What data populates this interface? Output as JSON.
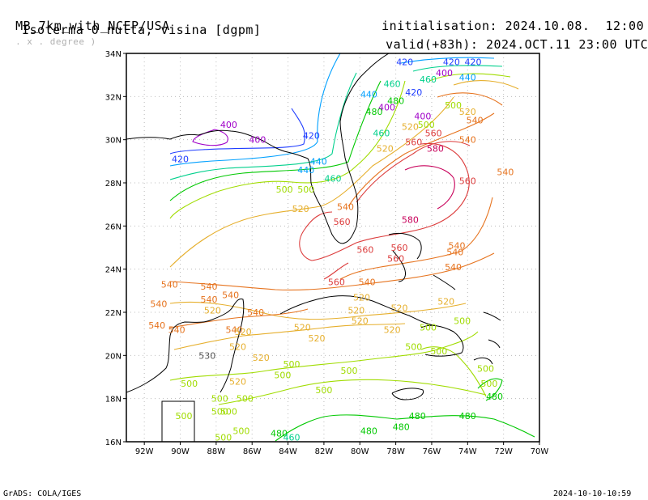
{
  "header": {
    "model": "MB_7km_with_NCEP/USA",
    "model_sub": ". x . degree )",
    "product": "Isoterma 0 nulta, visina [dgpm]",
    "init_label": "initialisation:",
    "init_value": "2024.10.08.  12:00 UTC",
    "valid_label": "valid(+83h):",
    "valid_value": "2024.OCT.11 23:00 UTC"
  },
  "footer": {
    "left": "GrADS: COLA/IGES",
    "right": "2024-10-10-10:59"
  },
  "map": {
    "lon_range": [
      -93,
      -70
    ],
    "lat_range": [
      16,
      34
    ],
    "x_ticks": [
      "92W",
      "90W",
      "88W",
      "86W",
      "84W",
      "82W",
      "80W",
      "78W",
      "76W",
      "74W",
      "72W",
      "70W"
    ],
    "y_ticks": [
      "34N",
      "32N",
      "30N",
      "28N",
      "26N",
      "24N",
      "22N",
      "20N",
      "18N",
      "16N"
    ],
    "contour_colors": {
      "400": "#a000c8",
      "420": "#1e3cff",
      "440": "#00a0ff",
      "460": "#00d08c",
      "480": "#00c800",
      "500": "#a0dc00",
      "520": "#e6af2d",
      "540": "#e6731e",
      "560": "#dc3c3c",
      "580": "#c8005a"
    },
    "contour_labels": [
      {
        "v": "420",
        "lon": -77.5,
        "lat": 33.6
      },
      {
        "v": "420",
        "lon": -74.9,
        "lat": 33.6
      },
      {
        "v": "420",
        "lon": -73.7,
        "lat": 33.6
      },
      {
        "v": "400",
        "lon": -75.3,
        "lat": 33.1
      },
      {
        "v": "440",
        "lon": -74.0,
        "lat": 32.9
      },
      {
        "v": "460",
        "lon": -76.2,
        "lat": 32.8
      },
      {
        "v": "440",
        "lon": -79.5,
        "lat": 32.1
      },
      {
        "v": "460",
        "lon": -78.2,
        "lat": 32.6
      },
      {
        "v": "400",
        "lon": -78.5,
        "lat": 31.5
      },
      {
        "v": "480",
        "lon": -78.0,
        "lat": 31.8
      },
      {
        "v": "420",
        "lon": -77.0,
        "lat": 32.2
      },
      {
        "v": "500",
        "lon": -74.8,
        "lat": 31.6
      },
      {
        "v": "480",
        "lon": -79.2,
        "lat": 31.3
      },
      {
        "v": "520",
        "lon": -74.0,
        "lat": 31.3
      },
      {
        "v": "400",
        "lon": -76.5,
        "lat": 31.1
      },
      {
        "v": "540",
        "lon": -73.6,
        "lat": 30.9
      },
      {
        "v": "500",
        "lon": -76.3,
        "lat": 30.7
      },
      {
        "v": "460",
        "lon": -78.8,
        "lat": 30.3
      },
      {
        "v": "520",
        "lon": -77.2,
        "lat": 30.6
      },
      {
        "v": "560",
        "lon": -75.9,
        "lat": 30.3
      },
      {
        "v": "540",
        "lon": -74.0,
        "lat": 30.0
      },
      {
        "v": "560",
        "lon": -77.0,
        "lat": 29.9
      },
      {
        "v": "580",
        "lon": -75.8,
        "lat": 29.6
      },
      {
        "v": "520",
        "lon": -78.6,
        "lat": 29.6
      },
      {
        "v": "540",
        "lon": -71.9,
        "lat": 28.5
      },
      {
        "v": "560",
        "lon": -74.0,
        "lat": 28.1
      },
      {
        "v": "400",
        "lon": -87.3,
        "lat": 30.7
      },
      {
        "v": "400",
        "lon": -85.7,
        "lat": 30.0
      },
      {
        "v": "420",
        "lon": -82.7,
        "lat": 30.2
      },
      {
        "v": "420",
        "lon": -90.0,
        "lat": 29.1
      },
      {
        "v": "440",
        "lon": -82.3,
        "lat": 29.0
      },
      {
        "v": "440",
        "lon": -83.0,
        "lat": 28.6
      },
      {
        "v": "460",
        "lon": -81.5,
        "lat": 28.2
      },
      {
        "v": "500",
        "lon": -84.2,
        "lat": 27.7
      },
      {
        "v": "500",
        "lon": -83.0,
        "lat": 27.7
      },
      {
        "v": "520",
        "lon": -83.3,
        "lat": 26.8
      },
      {
        "v": "540",
        "lon": -80.8,
        "lat": 26.9
      },
      {
        "v": "560",
        "lon": -81.0,
        "lat": 26.2
      },
      {
        "v": "580",
        "lon": -77.2,
        "lat": 26.3
      },
      {
        "v": "560",
        "lon": -79.7,
        "lat": 24.9
      },
      {
        "v": "560",
        "lon": -77.8,
        "lat": 25.0
      },
      {
        "v": "560",
        "lon": -78.0,
        "lat": 24.5
      },
      {
        "v": "540",
        "lon": -74.6,
        "lat": 25.1
      },
      {
        "v": "540",
        "lon": -74.7,
        "lat": 24.8
      },
      {
        "v": "540",
        "lon": -74.8,
        "lat": 24.1
      },
      {
        "v": "560",
        "lon": -81.3,
        "lat": 23.4
      },
      {
        "v": "540",
        "lon": -79.6,
        "lat": 23.4
      },
      {
        "v": "540",
        "lon": -90.6,
        "lat": 23.3
      },
      {
        "v": "540",
        "lon": -88.4,
        "lat": 23.2
      },
      {
        "v": "540",
        "lon": -87.2,
        "lat": 22.8
      },
      {
        "v": "540",
        "lon": -88.4,
        "lat": 22.6
      },
      {
        "v": "520",
        "lon": -79.9,
        "lat": 22.7
      },
      {
        "v": "520",
        "lon": -77.8,
        "lat": 22.2
      },
      {
        "v": "520",
        "lon": -75.2,
        "lat": 22.5
      },
      {
        "v": "540",
        "lon": -91.2,
        "lat": 22.4
      },
      {
        "v": "520",
        "lon": -88.2,
        "lat": 22.1
      },
      {
        "v": "540",
        "lon": -85.8,
        "lat": 22.0
      },
      {
        "v": "520",
        "lon": -80.2,
        "lat": 22.1
      },
      {
        "v": "520",
        "lon": -80.0,
        "lat": 21.6
      },
      {
        "v": "540",
        "lon": -91.3,
        "lat": 21.4
      },
      {
        "v": "540",
        "lon": -90.2,
        "lat": 21.2
      },
      {
        "v": "540",
        "lon": -87.0,
        "lat": 21.2
      },
      {
        "v": "520",
        "lon": -86.5,
        "lat": 21.1
      },
      {
        "v": "520",
        "lon": -83.2,
        "lat": 21.3
      },
      {
        "v": "520",
        "lon": -82.4,
        "lat": 20.8
      },
      {
        "v": "520",
        "lon": -78.2,
        "lat": 21.2
      },
      {
        "v": "500",
        "lon": -76.2,
        "lat": 21.3
      },
      {
        "v": "500",
        "lon": -74.3,
        "lat": 21.6
      },
      {
        "v": "520",
        "lon": -86.8,
        "lat": 20.4
      },
      {
        "v": "520",
        "lon": -85.5,
        "lat": 19.9
      },
      {
        "v": "530",
        "lon": -88.5,
        "lat": 20.0
      },
      {
        "v": "500",
        "lon": -77.0,
        "lat": 20.4
      },
      {
        "v": "500",
        "lon": -75.6,
        "lat": 20.2
      },
      {
        "v": "500",
        "lon": -83.8,
        "lat": 19.6
      },
      {
        "v": "500",
        "lon": -84.3,
        "lat": 19.1
      },
      {
        "v": "500",
        "lon": -80.6,
        "lat": 19.3
      },
      {
        "v": "520",
        "lon": -86.8,
        "lat": 18.8
      },
      {
        "v": "500",
        "lon": -89.5,
        "lat": 18.7
      },
      {
        "v": "500",
        "lon": -87.8,
        "lat": 18.0
      },
      {
        "v": "500",
        "lon": -86.4,
        "lat": 18.0
      },
      {
        "v": "500",
        "lon": -82.0,
        "lat": 18.4
      },
      {
        "v": "500",
        "lon": -73.0,
        "lat": 19.4
      },
      {
        "v": "500",
        "lon": -72.8,
        "lat": 18.7
      },
      {
        "v": "480",
        "lon": -72.5,
        "lat": 18.1
      },
      {
        "v": "500",
        "lon": -89.8,
        "lat": 17.2
      },
      {
        "v": "500",
        "lon": -87.8,
        "lat": 17.4
      },
      {
        "v": "500",
        "lon": -87.3,
        "lat": 17.4
      },
      {
        "v": "500",
        "lon": -86.6,
        "lat": 16.5
      },
      {
        "v": "500",
        "lon": -87.6,
        "lat": 16.2
      },
      {
        "v": "480",
        "lon": -84.5,
        "lat": 16.4
      },
      {
        "v": "460",
        "lon": -83.8,
        "lat": 16.2
      },
      {
        "v": "480",
        "lon": -79.5,
        "lat": 16.5
      },
      {
        "v": "480",
        "lon": -76.8,
        "lat": 17.2
      },
      {
        "v": "480",
        "lon": -77.7,
        "lat": 16.7
      },
      {
        "v": "480",
        "lon": -74.0,
        "lat": 17.2
      }
    ]
  }
}
